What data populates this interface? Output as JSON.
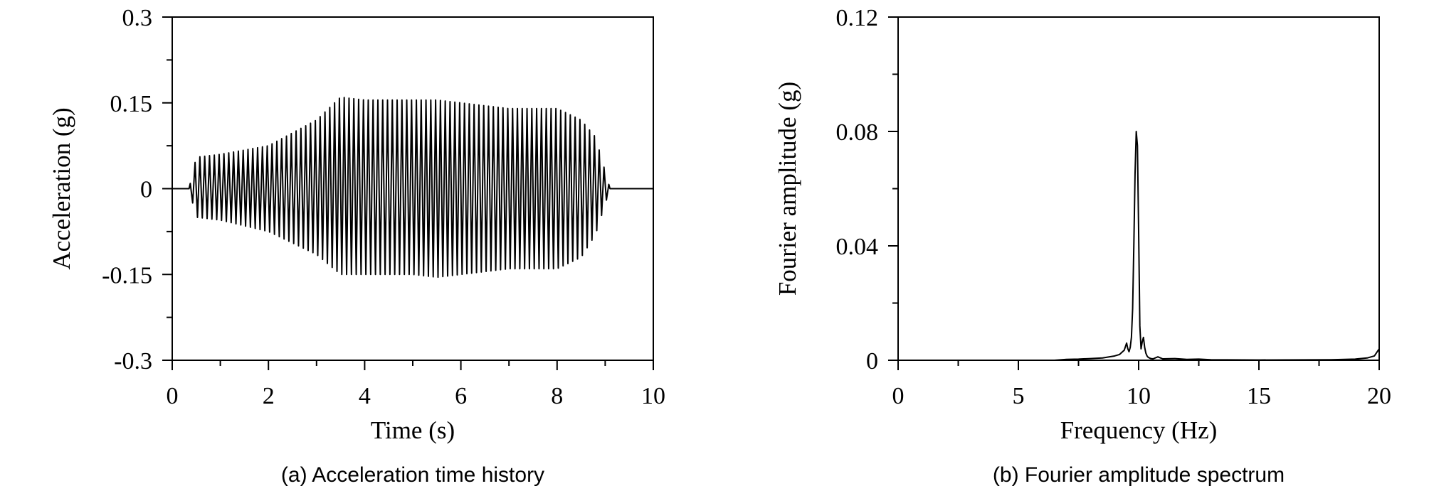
{
  "chart_data": [
    {
      "type": "line",
      "caption": "(a) Acceleration time history",
      "xlabel": "Time (s)",
      "ylabel": "Acceleration (g)",
      "xlim": [
        0,
        10
      ],
      "ylim": [
        -0.3,
        0.3
      ],
      "xticks": [
        0,
        2,
        4,
        6,
        8,
        10
      ],
      "xtick_labels": [
        "0",
        "2",
        "4",
        "6",
        "8",
        "10"
      ],
      "yticks": [
        -0.3,
        -0.15,
        0,
        0.15,
        0.3
      ],
      "ytick_labels": [
        "-0.3",
        "-0.15",
        "0",
        "0.15",
        "0.3"
      ],
      "grid": false,
      "signal": {
        "frequency_hz": 10,
        "start_s": 0.35,
        "end_s": 9.1,
        "envelope_t": [
          0.0,
          0.35,
          0.5,
          1.0,
          2.0,
          3.0,
          3.5,
          4.0,
          5.0,
          5.5,
          6.0,
          7.0,
          8.0,
          8.5,
          8.8,
          9.1,
          10.0
        ],
        "envelope_pos": [
          0.0,
          0.0,
          0.055,
          0.06,
          0.075,
          0.12,
          0.16,
          0.155,
          0.155,
          0.155,
          0.15,
          0.14,
          0.14,
          0.12,
          0.09,
          0.0,
          0.0
        ],
        "envelope_neg": [
          0.0,
          0.0,
          -0.05,
          -0.055,
          -0.075,
          -0.115,
          -0.15,
          -0.15,
          -0.15,
          -0.155,
          -0.15,
          -0.14,
          -0.14,
          -0.12,
          -0.08,
          0.0,
          0.0
        ]
      }
    },
    {
      "type": "line",
      "caption": "(b) Fourier amplitude spectrum",
      "xlabel": "Frequency (Hz)",
      "ylabel": "Fourier amplitude (g)",
      "xlim": [
        0,
        20
      ],
      "ylim": [
        0,
        0.12
      ],
      "xticks": [
        0,
        5,
        10,
        15,
        20
      ],
      "xtick_labels": [
        "0",
        "5",
        "10",
        "15",
        "20"
      ],
      "yticks": [
        0,
        0.04,
        0.08,
        0.12
      ],
      "ytick_labels": [
        "0",
        "0.04",
        "0.08",
        "0.12"
      ],
      "grid": false,
      "x": [
        0,
        6.5,
        7.0,
        7.5,
        8.0,
        8.5,
        9.0,
        9.2,
        9.4,
        9.5,
        9.55,
        9.6,
        9.65,
        9.7,
        9.75,
        9.8,
        9.85,
        9.9,
        9.95,
        10.0,
        10.05,
        10.1,
        10.15,
        10.2,
        10.25,
        10.3,
        10.35,
        10.4,
        10.5,
        10.6,
        10.8,
        11.0,
        11.5,
        12.0,
        12.5,
        13.0,
        15.0,
        18.0,
        19.0,
        19.5,
        19.8,
        20.0
      ],
      "y": [
        0,
        0,
        0.0003,
        0.0004,
        0.0006,
        0.0008,
        0.0015,
        0.002,
        0.0035,
        0.006,
        0.004,
        0.003,
        0.0045,
        0.008,
        0.018,
        0.04,
        0.065,
        0.08,
        0.075,
        0.045,
        0.012,
        0.004,
        0.0065,
        0.008,
        0.0045,
        0.0025,
        0.0015,
        0.001,
        0.0006,
        0.0005,
        0.0012,
        0.0005,
        0.0006,
        0.0003,
        0.0004,
        0.0002,
        0.0001,
        0.0002,
        0.0004,
        0.0008,
        0.0015,
        0.004
      ]
    }
  ]
}
